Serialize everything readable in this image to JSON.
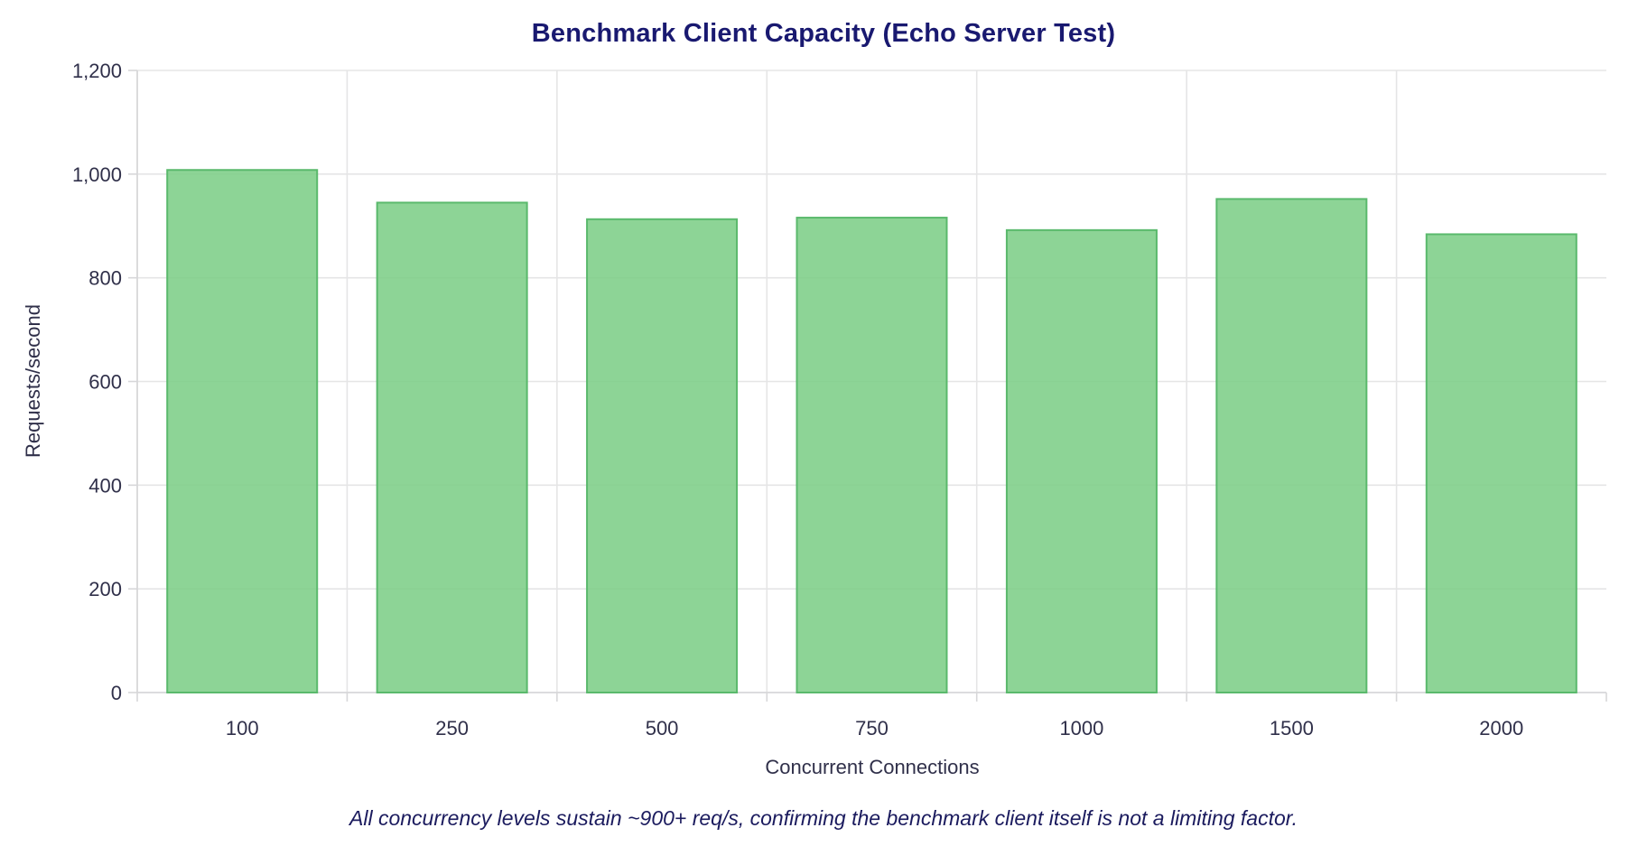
{
  "chart_data": {
    "type": "bar",
    "title": "Benchmark Client Capacity (Echo Server Test)",
    "categories": [
      "100",
      "250",
      "500",
      "750",
      "1000",
      "1500",
      "2000"
    ],
    "values": [
      1008,
      945,
      913,
      916,
      892,
      952,
      884
    ],
    "xlabel": "Concurrent Connections",
    "ylabel": "Requests/second",
    "ylim": [
      0,
      1200
    ],
    "ytick_step": 200,
    "ytick_labels": [
      "0",
      "200",
      "400",
      "600",
      "800",
      "1,000",
      "1,200"
    ],
    "grid": true,
    "legend_position": "none",
    "caption": "All concurrency levels sustain ~900+ req/s, confirming the benchmark client itself is not a limiting factor.",
    "colors": {
      "bar_fill": "#7dce87",
      "bar_border": "#5ab96c",
      "title_text": "#191970",
      "axis_text": "#30304a",
      "caption_text": "#1b1b5e",
      "gridline": "#e5e5e6",
      "axis_line": "#d7d7d9",
      "background": "#ffffff"
    }
  }
}
